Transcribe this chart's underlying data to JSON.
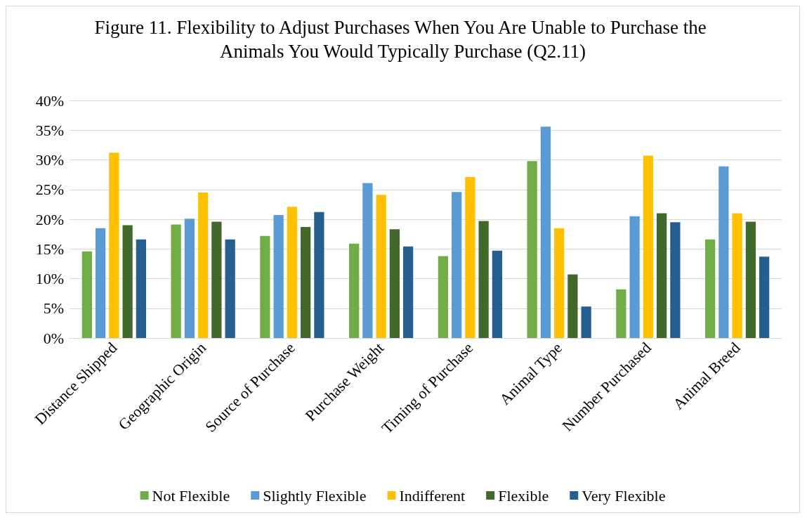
{
  "chart_data": {
    "type": "bar",
    "title": "Figure 11. Flexibility to Adjust Purchases When You Are Unable to Purchase the Animals You Would Typically Purchase (Q2.11)",
    "categories": [
      "Distance Shipped",
      "Geographic Origin",
      "Source of Purchase",
      "Purchase Weight",
      "Timing of Purchase",
      "Animal Type",
      "Number Purchased",
      "Animal Breed"
    ],
    "series": [
      {
        "name": "Not Flexible",
        "color": "#70ad47",
        "values": [
          14.6,
          19.1,
          17.2,
          15.9,
          13.8,
          29.8,
          8.2,
          16.6
        ]
      },
      {
        "name": "Slightly Flexible",
        "color": "#5b9bd5",
        "values": [
          18.5,
          20.1,
          20.7,
          26.1,
          24.6,
          35.6,
          20.5,
          28.9
        ]
      },
      {
        "name": "Indifferent",
        "color": "#ffc000",
        "values": [
          31.2,
          24.5,
          22.1,
          24.1,
          27.1,
          18.5,
          30.7,
          21.0
        ]
      },
      {
        "name": "Flexible",
        "color": "#43682b",
        "values": [
          19.0,
          19.6,
          18.7,
          18.3,
          19.7,
          10.7,
          21.0,
          19.6
        ]
      },
      {
        "name": "Very Flexible",
        "color": "#255e91",
        "values": [
          16.6,
          16.6,
          21.2,
          15.4,
          14.7,
          5.3,
          19.5,
          13.7
        ]
      }
    ],
    "ylim": [
      0,
      40
    ],
    "yticks": [
      {
        "value": 0,
        "label": "0%"
      },
      {
        "value": 5,
        "label": "5%"
      },
      {
        "value": 10,
        "label": "10%"
      },
      {
        "value": 15,
        "label": "15%"
      },
      {
        "value": 20,
        "label": "20%"
      },
      {
        "value": 25,
        "label": "25%"
      },
      {
        "value": 30,
        "label": "30%"
      },
      {
        "value": 35,
        "label": "35%"
      },
      {
        "value": 40,
        "label": "40%"
      }
    ],
    "grid": "y",
    "legend": "bottom"
  }
}
